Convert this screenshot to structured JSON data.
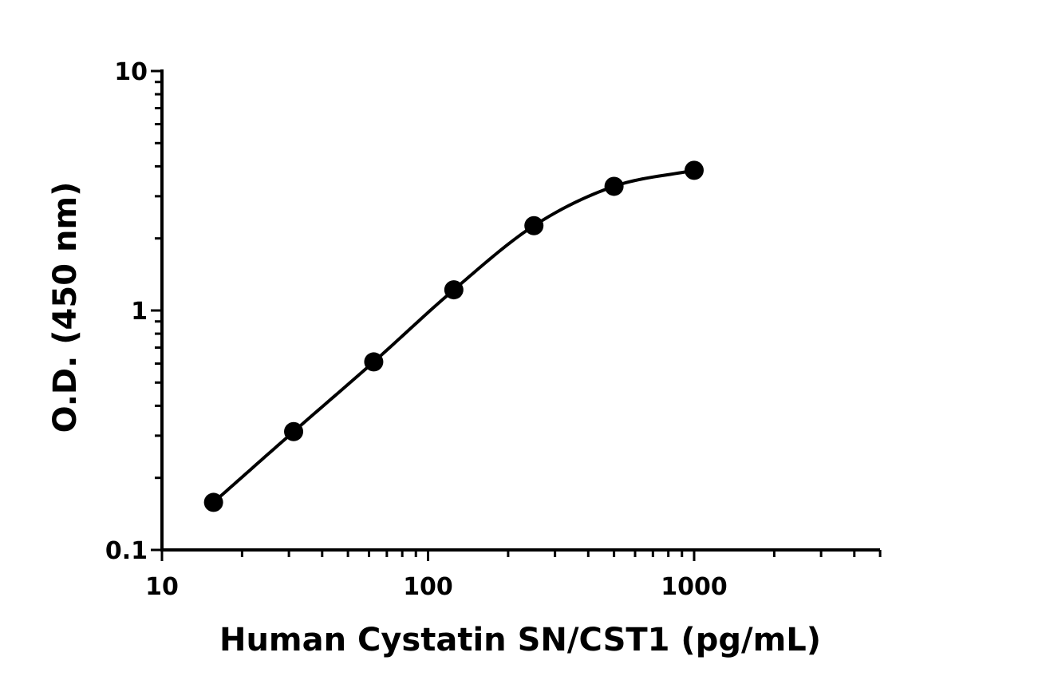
{
  "chart_data": {
    "type": "scatter",
    "title": "",
    "xlabel": "Human Cystatin SN/CST1 (pg/mL)",
    "ylabel": "O.D. (450 nm)",
    "x_scale": "log",
    "y_scale": "log",
    "xlim": [
      10,
      5000
    ],
    "ylim": [
      0.1,
      10
    ],
    "x_ticks": [
      {
        "value": 10,
        "label": "10"
      },
      {
        "value": 100,
        "label": "100"
      },
      {
        "value": 1000,
        "label": "1000"
      }
    ],
    "y_ticks": [
      {
        "value": 0.1,
        "label": "0.1"
      },
      {
        "value": 1,
        "label": "1"
      },
      {
        "value": 10,
        "label": "10"
      }
    ],
    "grid": false,
    "legend": "none",
    "series": [
      {
        "x": [
          15.625,
          31.25,
          62.5,
          125,
          250,
          500,
          1000
        ],
        "y": [
          0.158,
          0.312,
          0.61,
          1.22,
          2.26,
          3.3,
          3.85
        ],
        "marker_color": "#000000",
        "curve": "fitted"
      }
    ]
  }
}
